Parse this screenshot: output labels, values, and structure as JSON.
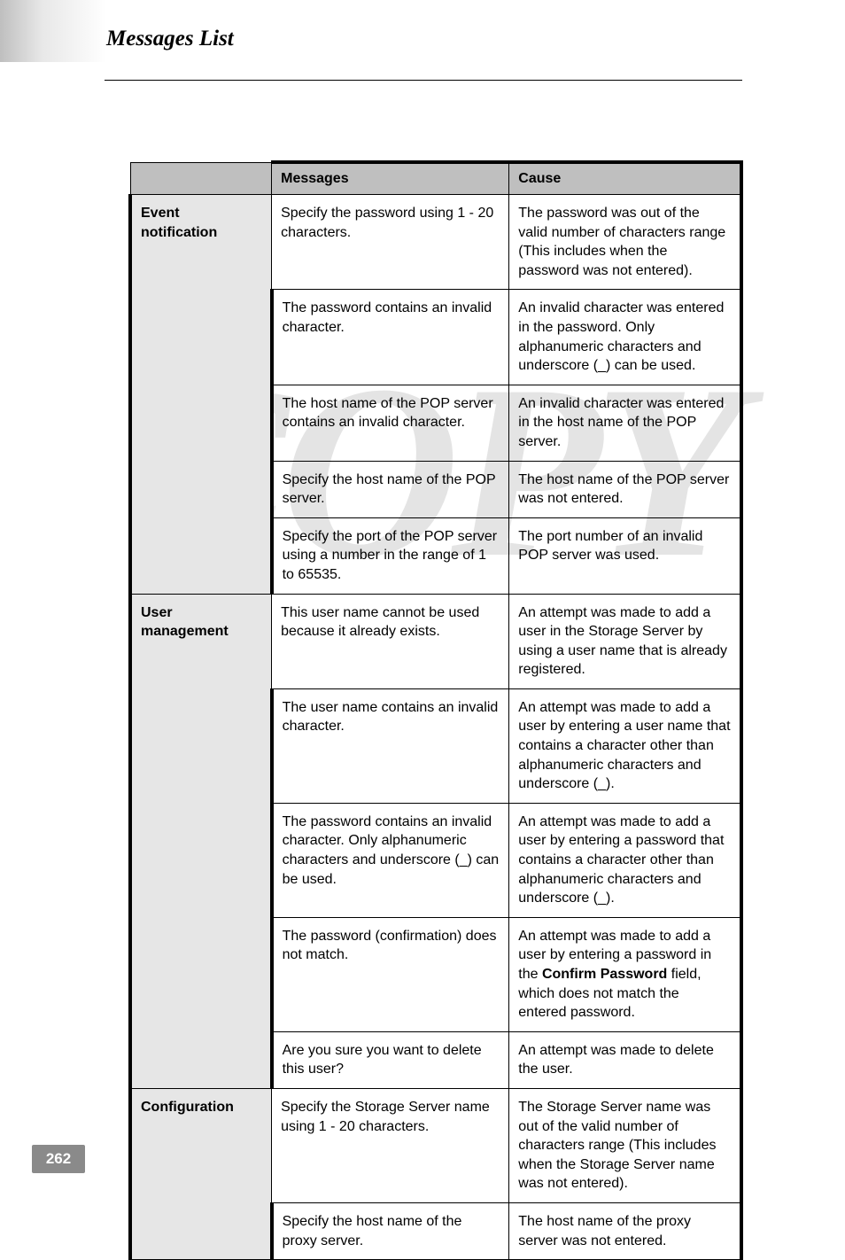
{
  "page": {
    "title": "Messages List",
    "number": "262",
    "watermark": "COPY"
  },
  "table": {
    "headers": {
      "corner": "",
      "messages": "Messages",
      "cause": "Cause"
    },
    "sections": [
      {
        "category": "Event\nnotification",
        "rows": [
          {
            "message": "Specify the password using 1 - 20 characters.",
            "cause": "The password was out of the valid number of characters range (This includes when the password was not entered)."
          },
          {
            "message": "The password contains an invalid character.",
            "cause": "An invalid character was entered in the password. Only alphanumeric characters and underscore (_) can be used."
          },
          {
            "message": "The host name of the POP server contains an invalid character.",
            "cause": "An invalid character was entered in the host name of the POP server."
          },
          {
            "message": "Specify the host name of the POP server.",
            "cause": "The host name of the POP server was not entered."
          },
          {
            "message": "Specify the port of the POP server using a number in the range of 1 to 65535.",
            "cause": "The port number of an invalid POP server was used."
          }
        ]
      },
      {
        "category": "User\nmanagement",
        "rows": [
          {
            "message": "This user name cannot be used because it already exists.",
            "cause": "An attempt was made to add a user in the Storage Server by using a user name that is already registered."
          },
          {
            "message": "The user name contains an invalid character.",
            "cause": "An attempt was made to add a user by entering a user name that contains a character other than alphanumeric characters and underscore (_)."
          },
          {
            "message": "The password contains an invalid character. Only alphanumeric characters and underscore (_) can be used.",
            "cause": "An attempt was made to add a user by entering a password that contains a character other than alphanumeric characters and underscore (_)."
          },
          {
            "message": "The password (confirmation) does not match.",
            "cause_prefix": "An attempt was made to add a user by entering a password in the ",
            "cause_bold": "Confirm Password",
            "cause_suffix": " field, which does not match the entered password."
          },
          {
            "message": "Are you sure you want to delete this user?",
            "cause": "An attempt was made to delete the user."
          }
        ]
      },
      {
        "category": "Configuration",
        "rows": [
          {
            "message": "Specify the Storage Server name using 1 - 20 characters.",
            "cause": "The Storage Server name was out of the valid number of characters range (This includes when the Storage Server name was not entered)."
          },
          {
            "message": "Specify the host name of the proxy server.",
            "cause": "The host name of the proxy server was not entered."
          }
        ]
      }
    ]
  }
}
